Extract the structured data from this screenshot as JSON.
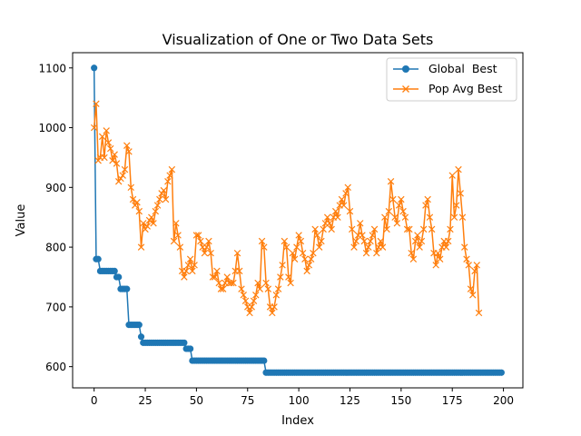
{
  "chart_data": {
    "type": "line",
    "title": "Visualization of One or Two Data Sets",
    "xlabel": "Index",
    "ylabel": "Value",
    "xlim": [
      -10.5,
      209.5
    ],
    "ylim": [
      564.5,
      1125.5
    ],
    "xticks": [
      0,
      25,
      50,
      75,
      100,
      125,
      150,
      175,
      200
    ],
    "yticks": [
      600,
      700,
      800,
      900,
      1000,
      1100
    ],
    "legend_position": "top-right",
    "series": [
      {
        "name": "Global  Best",
        "color": "#1f77b4",
        "marker": "circle",
        "values": [
          1100,
          780,
          780,
          760,
          760,
          760,
          760,
          760,
          760,
          760,
          760,
          750,
          750,
          730,
          730,
          730,
          730,
          670,
          670,
          670,
          670,
          670,
          670,
          650,
          640,
          640,
          640,
          640,
          640,
          640,
          640,
          640,
          640,
          640,
          640,
          640,
          640,
          640,
          640,
          640,
          640,
          640,
          640,
          640,
          640,
          630,
          630,
          630,
          610,
          610,
          610,
          610,
          610,
          610,
          610,
          610,
          610,
          610,
          610,
          610,
          610,
          610,
          610,
          610,
          610,
          610,
          610,
          610,
          610,
          610,
          610,
          610,
          610,
          610,
          610,
          610,
          610,
          610,
          610,
          610,
          610,
          610,
          610,
          610,
          590,
          590,
          590,
          590,
          590,
          590,
          590,
          590,
          590,
          590,
          590,
          590,
          590,
          590,
          590,
          590,
          590,
          590,
          590,
          590,
          590,
          590,
          590,
          590,
          590,
          590,
          590,
          590,
          590,
          590,
          590,
          590,
          590,
          590,
          590,
          590,
          590,
          590,
          590,
          590,
          590,
          590,
          590,
          590,
          590,
          590,
          590,
          590,
          590,
          590,
          590,
          590,
          590,
          590,
          590,
          590,
          590,
          590,
          590,
          590,
          590,
          590,
          590,
          590,
          590,
          590,
          590,
          590,
          590,
          590,
          590,
          590,
          590,
          590,
          590,
          590,
          590,
          590,
          590,
          590,
          590,
          590,
          590,
          590,
          590,
          590,
          590,
          590,
          590,
          590,
          590,
          590,
          590,
          590,
          590,
          590,
          590,
          590,
          590,
          590,
          590,
          590,
          590,
          590,
          590,
          590,
          590,
          590,
          590,
          590,
          590,
          590,
          590,
          590,
          590,
          590
        ]
      },
      {
        "name": "Pop Avg Best",
        "color": "#ff7f0e",
        "marker": "x",
        "values": [
          1000,
          1040,
          945,
          950,
          985,
          950,
          995,
          975,
          965,
          945,
          955,
          940,
          910,
          915,
          920,
          930,
          970,
          960,
          900,
          880,
          870,
          875,
          860,
          800,
          840,
          830,
          835,
          845,
          850,
          840,
          860,
          870,
          880,
          890,
          895,
          880,
          910,
          920,
          930,
          810,
          840,
          820,
          800,
          760,
          750,
          760,
          770,
          780,
          760,
          770,
          820,
          820,
          810,
          800,
          790,
          800,
          810,
          790,
          750,
          750,
          760,
          740,
          730,
          730,
          740,
          750,
          740,
          740,
          740,
          760,
          790,
          760,
          730,
          720,
          710,
          700,
          690,
          700,
          710,
          720,
          740,
          730,
          810,
          800,
          740,
          730,
          700,
          690,
          700,
          720,
          730,
          750,
          770,
          810,
          800,
          750,
          740,
          790,
          780,
          800,
          820,
          810,
          790,
          780,
          760,
          770,
          780,
          790,
          830,
          820,
          800,
          810,
          830,
          840,
          850,
          840,
          830,
          850,
          860,
          850,
          870,
          880,
          870,
          890,
          900,
          860,
          830,
          800,
          810,
          820,
          840,
          820,
          810,
          790,
          800,
          810,
          820,
          830,
          790,
          800,
          810,
          800,
          850,
          830,
          860,
          910,
          880,
          850,
          840,
          870,
          880,
          860,
          850,
          830,
          830,
          790,
          780,
          810,
          820,
          800,
          810,
          830,
          870,
          880,
          850,
          830,
          790,
          770,
          790,
          780,
          800,
          810,
          800,
          810,
          830,
          920,
          850,
          870,
          930,
          890,
          850,
          800,
          780,
          770,
          730,
          720,
          760,
          770,
          690
        ]
      }
    ]
  }
}
